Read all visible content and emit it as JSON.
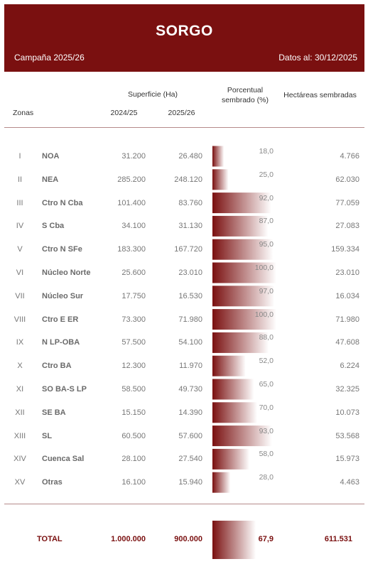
{
  "header": {
    "title": "SORGO",
    "campaign": "Campaña 2025/26",
    "date": "Datos al: 30/12/2025"
  },
  "columns": {
    "zonas": "Zonas",
    "superficie": "Superficie (Ha)",
    "y1": "2024/25",
    "y2": "2025/26",
    "pct_line1": "Porcentual",
    "pct_line2": "sembrado (%)",
    "hectareas": "Hectáreas sembradas"
  },
  "colors": {
    "banner": "#7a1010",
    "bar_dark": "#7a1010",
    "bar_light": "#ffffff"
  },
  "chart_data": {
    "type": "table",
    "columns": [
      "",
      "Zonas",
      "2024/25",
      "2025/26",
      "Porcentual sembrado (%)",
      "Hectáreas sembradas"
    ],
    "rows": [
      {
        "num": "I",
        "zone": "NOA",
        "sup_2024": "31.200",
        "sup_2025": "26.480",
        "pct_label": "18,0",
        "pct": 18.0,
        "ha": "4.766"
      },
      {
        "num": "II",
        "zone": "NEA",
        "sup_2024": "285.200",
        "sup_2025": "248.120",
        "pct_label": "25,0",
        "pct": 25.0,
        "ha": "62.030"
      },
      {
        "num": "III",
        "zone": "Ctro N Cba",
        "sup_2024": "101.400",
        "sup_2025": "83.760",
        "pct_label": "92,0",
        "pct": 92.0,
        "ha": "77.059"
      },
      {
        "num": "IV",
        "zone": "S Cba",
        "sup_2024": "34.100",
        "sup_2025": "31.130",
        "pct_label": "87,0",
        "pct": 87.0,
        "ha": "27.083"
      },
      {
        "num": "V",
        "zone": "Ctro N SFe",
        "sup_2024": "183.300",
        "sup_2025": "167.720",
        "pct_label": "95,0",
        "pct": 95.0,
        "ha": "159.334"
      },
      {
        "num": "VI",
        "zone": "Núcleo Norte",
        "sup_2024": "25.600",
        "sup_2025": "23.010",
        "pct_label": "100,0",
        "pct": 100.0,
        "ha": "23.010"
      },
      {
        "num": "VII",
        "zone": "Núcleo Sur",
        "sup_2024": "17.750",
        "sup_2025": "16.530",
        "pct_label": "97,0",
        "pct": 97.0,
        "ha": "16.034"
      },
      {
        "num": "VIII",
        "zone": "Ctro E ER",
        "sup_2024": "73.300",
        "sup_2025": "71.980",
        "pct_label": "100,0",
        "pct": 100.0,
        "ha": "71.980"
      },
      {
        "num": "IX",
        "zone": "N LP-OBA",
        "sup_2024": "57.500",
        "sup_2025": "54.100",
        "pct_label": "88,0",
        "pct": 88.0,
        "ha": "47.608"
      },
      {
        "num": "X",
        "zone": "Ctro BA",
        "sup_2024": "12.300",
        "sup_2025": "11.970",
        "pct_label": "52,0",
        "pct": 52.0,
        "ha": "6.224"
      },
      {
        "num": "XI",
        "zone": "SO BA-S LP",
        "sup_2024": "58.500",
        "sup_2025": "49.730",
        "pct_label": "65,0",
        "pct": 65.0,
        "ha": "32.325"
      },
      {
        "num": "XII",
        "zone": "SE BA",
        "sup_2024": "15.150",
        "sup_2025": "14.390",
        "pct_label": "70,0",
        "pct": 70.0,
        "ha": "10.073"
      },
      {
        "num": "XIII",
        "zone": "SL",
        "sup_2024": "60.500",
        "sup_2025": "57.600",
        "pct_label": "93,0",
        "pct": 93.0,
        "ha": "53.568"
      },
      {
        "num": "XIV",
        "zone": "Cuenca Sal",
        "sup_2024": "28.100",
        "sup_2025": "27.540",
        "pct_label": "58,0",
        "pct": 58.0,
        "ha": "15.973"
      },
      {
        "num": "XV",
        "zone": "Otras",
        "sup_2024": "16.100",
        "sup_2025": "15.940",
        "pct_label": "28,0",
        "pct": 28.0,
        "ha": "4.463"
      }
    ],
    "total": {
      "label": "TOTAL",
      "sup_2024": "1.000.000",
      "sup_2025": "900.000",
      "pct_label": "67,9",
      "pct": 67.9,
      "ha": "611.531"
    }
  }
}
